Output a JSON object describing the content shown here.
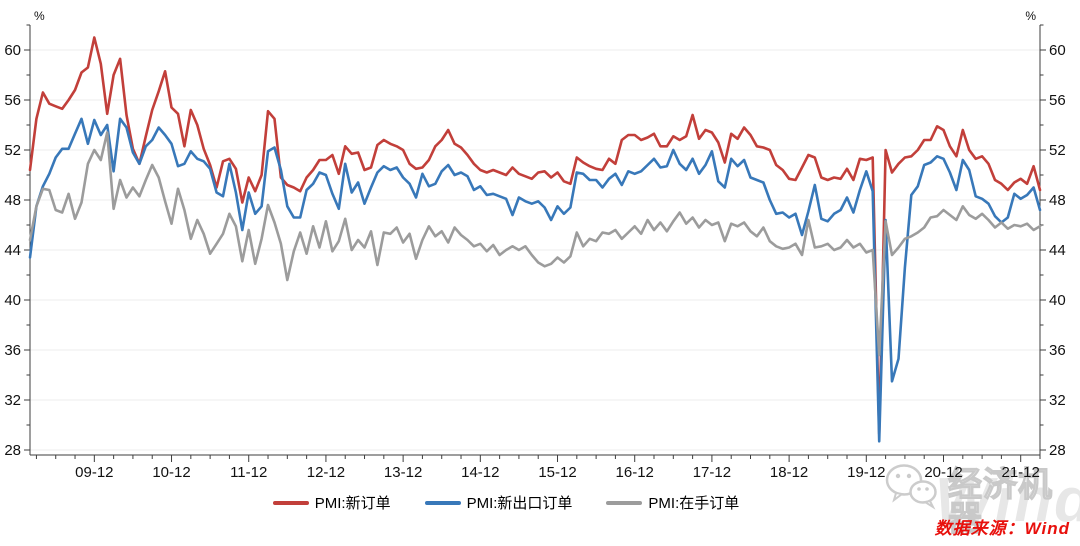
{
  "chart_data": {
    "type": "line",
    "title": "",
    "unit_left": "%",
    "unit_right": "%",
    "x_frequency": "monthly",
    "x_start": "2009-02",
    "x_end": "2022-03",
    "x_tick_labels": [
      "09-12",
      "10-12",
      "11-12",
      "12-12",
      "13-12",
      "14-12",
      "15-12",
      "16-12",
      "17-12",
      "18-12",
      "19-12",
      "20-12",
      "21-12"
    ],
    "ylim": [
      27.6,
      62
    ],
    "y_major_ticks": [
      28,
      32,
      36,
      40,
      44,
      48,
      52,
      56,
      60
    ],
    "y_minor_step": 2,
    "grid": "horizontal-major-only",
    "legend_position": "bottom-center",
    "series": [
      {
        "name": "PMI:新订单",
        "color": "#c23f3a",
        "values": [
          50.4,
          54.5,
          56.6,
          55.7,
          55.5,
          55.3,
          56.0,
          56.8,
          58.2,
          58.6,
          61.0,
          58.9,
          54.9,
          58.0,
          59.3,
          54.8,
          52.1,
          50.9,
          53.1,
          55.2,
          56.7,
          58.3,
          55.4,
          54.9,
          52.3,
          55.2,
          54.0,
          52.1,
          50.8,
          49.0,
          51.1,
          51.3,
          50.5,
          47.8,
          49.8,
          48.7,
          50.0,
          55.1,
          54.5,
          49.8,
          49.2,
          49.0,
          48.7,
          49.8,
          50.4,
          51.2,
          51.2,
          51.6,
          50.1,
          52.3,
          51.7,
          51.8,
          50.4,
          50.6,
          52.4,
          52.8,
          52.5,
          52.3,
          52.0,
          50.9,
          50.5,
          50.6,
          51.2,
          52.3,
          52.8,
          53.6,
          52.5,
          52.2,
          51.6,
          50.9,
          50.4,
          50.2,
          50.4,
          50.2,
          50.0,
          50.6,
          50.1,
          49.9,
          49.7,
          50.2,
          50.3,
          49.8,
          50.2,
          49.5,
          49.3,
          51.4,
          51.0,
          50.7,
          50.5,
          50.4,
          51.3,
          50.9,
          52.8,
          53.2,
          53.2,
          52.8,
          53.0,
          53.3,
          52.3,
          52.3,
          53.1,
          52.8,
          53.1,
          54.8,
          52.9,
          53.6,
          53.4,
          52.6,
          51.0,
          53.3,
          52.9,
          53.8,
          53.2,
          52.3,
          52.2,
          52.0,
          50.8,
          50.4,
          49.7,
          49.6,
          50.6,
          51.6,
          51.4,
          49.8,
          49.6,
          49.8,
          49.7,
          50.5,
          49.6,
          51.3,
          51.2,
          51.4,
          29.3,
          52.0,
          50.2,
          50.9,
          51.4,
          51.5,
          52.0,
          52.8,
          52.8,
          53.9,
          53.6,
          52.3,
          51.5,
          53.6,
          52.0,
          51.3,
          51.5,
          50.9,
          49.6,
          49.3,
          48.8,
          49.4,
          49.7,
          49.3,
          50.7,
          48.8
        ]
      },
      {
        "name": "PMI:新出口订单",
        "color": "#3878b9",
        "values": [
          43.4,
          47.5,
          49.1,
          50.1,
          51.4,
          52.1,
          52.1,
          53.3,
          54.5,
          52.5,
          54.4,
          53.2,
          54.0,
          50.3,
          54.5,
          53.8,
          51.8,
          50.9,
          52.3,
          52.8,
          53.8,
          53.2,
          52.5,
          50.7,
          50.9,
          51.9,
          51.3,
          51.1,
          50.5,
          48.6,
          48.3,
          50.9,
          48.6,
          45.6,
          48.6,
          46.9,
          47.5,
          51.9,
          52.2,
          50.4,
          47.5,
          46.6,
          46.6,
          48.8,
          49.3,
          50.2,
          50.0,
          48.5,
          47.3,
          50.9,
          48.6,
          49.4,
          47.7,
          49.0,
          50.2,
          50.7,
          50.4,
          50.6,
          49.8,
          49.3,
          48.2,
          50.1,
          49.1,
          49.3,
          50.3,
          50.8,
          50.0,
          50.2,
          49.9,
          48.8,
          49.1,
          48.4,
          48.5,
          48.3,
          48.1,
          46.8,
          48.2,
          47.9,
          47.7,
          47.9,
          47.4,
          46.4,
          47.5,
          46.9,
          47.4,
          50.2,
          50.1,
          49.6,
          49.6,
          49.0,
          49.7,
          50.1,
          49.2,
          50.3,
          50.1,
          50.3,
          50.8,
          51.3,
          50.6,
          50.7,
          52.0,
          50.9,
          50.4,
          51.3,
          50.1,
          50.8,
          51.9,
          49.5,
          49.0,
          51.3,
          50.7,
          51.2,
          49.8,
          49.6,
          49.4,
          48.0,
          46.9,
          47.0,
          46.6,
          46.9,
          45.2,
          47.1,
          49.2,
          46.5,
          46.3,
          46.9,
          47.2,
          48.2,
          47.0,
          48.8,
          50.3,
          48.7,
          28.7,
          46.4,
          33.5,
          35.3,
          42.6,
          48.4,
          49.1,
          50.8,
          51.0,
          51.5,
          51.3,
          50.2,
          48.8,
          51.2,
          50.4,
          48.3,
          48.1,
          47.7,
          46.7,
          46.2,
          46.6,
          48.5,
          48.1,
          48.4,
          49.0,
          47.2
        ]
      },
      {
        "name": "PMI:在手订单",
        "color": "#9c9c9c",
        "values": [
          44.8,
          47.5,
          48.9,
          48.8,
          47.2,
          47.0,
          48.5,
          46.5,
          47.8,
          50.9,
          52.0,
          51.2,
          53.4,
          47.3,
          49.6,
          48.2,
          49.0,
          48.3,
          49.6,
          50.8,
          49.8,
          47.9,
          46.1,
          48.9,
          47.2,
          44.9,
          46.4,
          45.3,
          43.7,
          44.5,
          45.3,
          46.9,
          45.9,
          43.1,
          45.6,
          42.9,
          44.9,
          47.6,
          46.2,
          44.5,
          41.6,
          43.9,
          45.4,
          43.7,
          45.9,
          44.2,
          46.3,
          43.9,
          44.7,
          46.5,
          44.0,
          44.8,
          44.2,
          45.5,
          42.8,
          45.4,
          45.3,
          45.8,
          44.6,
          45.3,
          43.3,
          44.8,
          45.9,
          45.1,
          45.5,
          44.6,
          45.8,
          45.2,
          44.8,
          44.3,
          44.5,
          43.9,
          44.4,
          43.6,
          44.0,
          44.3,
          44.0,
          44.3,
          43.6,
          43.0,
          42.7,
          42.9,
          43.4,
          43.0,
          43.5,
          45.4,
          44.3,
          44.9,
          44.7,
          45.4,
          45.3,
          45.6,
          44.9,
          45.4,
          45.9,
          45.3,
          46.4,
          45.6,
          46.2,
          45.5,
          46.3,
          47.0,
          46.1,
          46.6,
          45.8,
          46.4,
          46.0,
          46.2,
          44.7,
          46.1,
          45.9,
          46.2,
          45.5,
          45.1,
          45.8,
          44.7,
          44.3,
          44.1,
          44.2,
          44.5,
          43.6,
          46.4,
          44.2,
          44.3,
          44.5,
          44.0,
          44.2,
          44.8,
          44.2,
          44.5,
          43.8,
          44.0,
          35.6,
          46.3,
          43.6,
          44.2,
          44.9,
          45.1,
          45.4,
          45.8,
          46.6,
          46.7,
          47.2,
          46.8,
          46.4,
          47.5,
          46.8,
          46.5,
          46.9,
          46.4,
          45.8,
          46.2,
          45.7,
          46.0,
          45.9,
          46.1,
          45.6,
          45.9
        ]
      }
    ]
  },
  "footer": {
    "source_note": "数据来源：Wind"
  },
  "watermark": {
    "brand": "经济机器",
    "background_text": "Wind",
    "icon": "wechat-icon"
  }
}
